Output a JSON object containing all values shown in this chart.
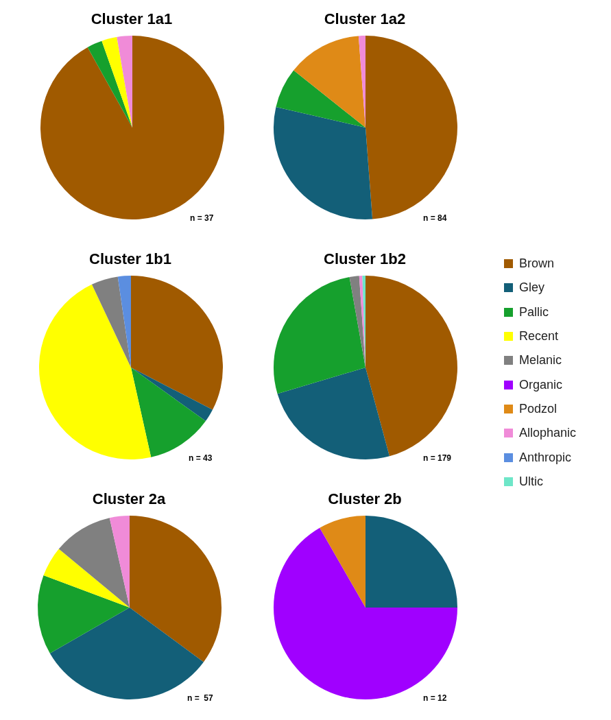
{
  "chart_data": [
    {
      "type": "pie",
      "title": "Cluster 1a1",
      "categories": [
        "Brown",
        "Gley",
        "Pallic",
        "Recent",
        "Melanic",
        "Organic",
        "Podzol",
        "Allophanic",
        "Anthropic",
        "Ultic"
      ],
      "values": [
        91.9,
        0,
        2.7,
        2.7,
        0,
        0,
        0,
        2.7,
        0,
        0
      ],
      "colors": [
        "#a05a00",
        "#135f78",
        "#16a02d",
        "#ffff00",
        "#808080",
        "#a000ff",
        "#df8a17",
        "#f08bd8",
        "#5b8ee0",
        "#6ee6c8"
      ],
      "annotations": [
        "n = 37"
      ],
      "legend": "right"
    },
    {
      "type": "pie",
      "title": "Cluster 1a2",
      "categories": [
        null,
        null,
        null,
        null,
        null,
        null,
        null,
        null,
        null,
        null
      ],
      "values": [
        48.8,
        29.8,
        7.1,
        0,
        0,
        0,
        13.1,
        1.2,
        0,
        0
      ],
      "colors": [
        "#a05a00",
        "#135f78",
        "#16a02d",
        "#ffff00",
        "#808080",
        "#a000ff",
        "#df8a17",
        "#f08bd8",
        "#5b8ee0",
        "#6ee6c8"
      ],
      "annotations": [
        "n = 84"
      ]
    },
    {
      "type": "pie",
      "title": "Cluster 1b1",
      "categories": [
        null,
        null,
        null,
        null,
        null,
        null,
        null,
        null,
        null,
        null
      ],
      "values": [
        32.6,
        2.3,
        11.6,
        46.5,
        4.7,
        0,
        0,
        0,
        2.3,
        0
      ],
      "colors": [
        "#a05a00",
        "#135f78",
        "#16a02d",
        "#ffff00",
        "#808080",
        "#a000ff",
        "#df8a17",
        "#f08bd8",
        "#5b8ee0",
        "#6ee6c8"
      ],
      "annotations": [
        "n = 43"
      ]
    },
    {
      "type": "pie",
      "title": "Cluster 1b2",
      "categories": [
        null,
        null,
        null,
        null,
        null,
        null,
        null,
        null,
        null,
        null
      ],
      "values": [
        45.8,
        24.6,
        26.8,
        0,
        1.7,
        0,
        0,
        0.55,
        0,
        0.55
      ],
      "colors": [
        "#a05a00",
        "#135f78",
        "#16a02d",
        "#ffff00",
        "#808080",
        "#a000ff",
        "#df8a17",
        "#f08bd8",
        "#5b8ee0",
        "#6ee6c8"
      ],
      "annotations": [
        "n = 179"
      ]
    },
    {
      "type": "pie",
      "title": "Cluster 2a",
      "categories": [
        null,
        null,
        null,
        null,
        null,
        null,
        null,
        null,
        null,
        null
      ],
      "values": [
        35.1,
        31.6,
        14,
        5.3,
        10.5,
        0,
        0,
        3.5,
        0,
        0
      ],
      "colors": [
        "#a05a00",
        "#135f78",
        "#16a02d",
        "#ffff00",
        "#808080",
        "#a000ff",
        "#df8a17",
        "#f08bd8",
        "#5b8ee0",
        "#6ee6c8"
      ],
      "annotations": [
        "n =  57"
      ]
    },
    {
      "type": "pie",
      "title": "Cluster 2b",
      "categories": [
        null,
        null,
        null,
        null,
        null,
        null,
        null,
        null,
        null,
        null
      ],
      "values": [
        0,
        25,
        0,
        0,
        0,
        66.7,
        8.3,
        0,
        0,
        0
      ],
      "colors": [
        "#a05a00",
        "#135f78",
        "#16a02d",
        "#ffff00",
        "#808080",
        "#a000ff",
        "#df8a17",
        "#f08bd8",
        "#5b8ee0",
        "#6ee6c8"
      ],
      "annotations": [
        "n = 12"
      ]
    }
  ]
}
